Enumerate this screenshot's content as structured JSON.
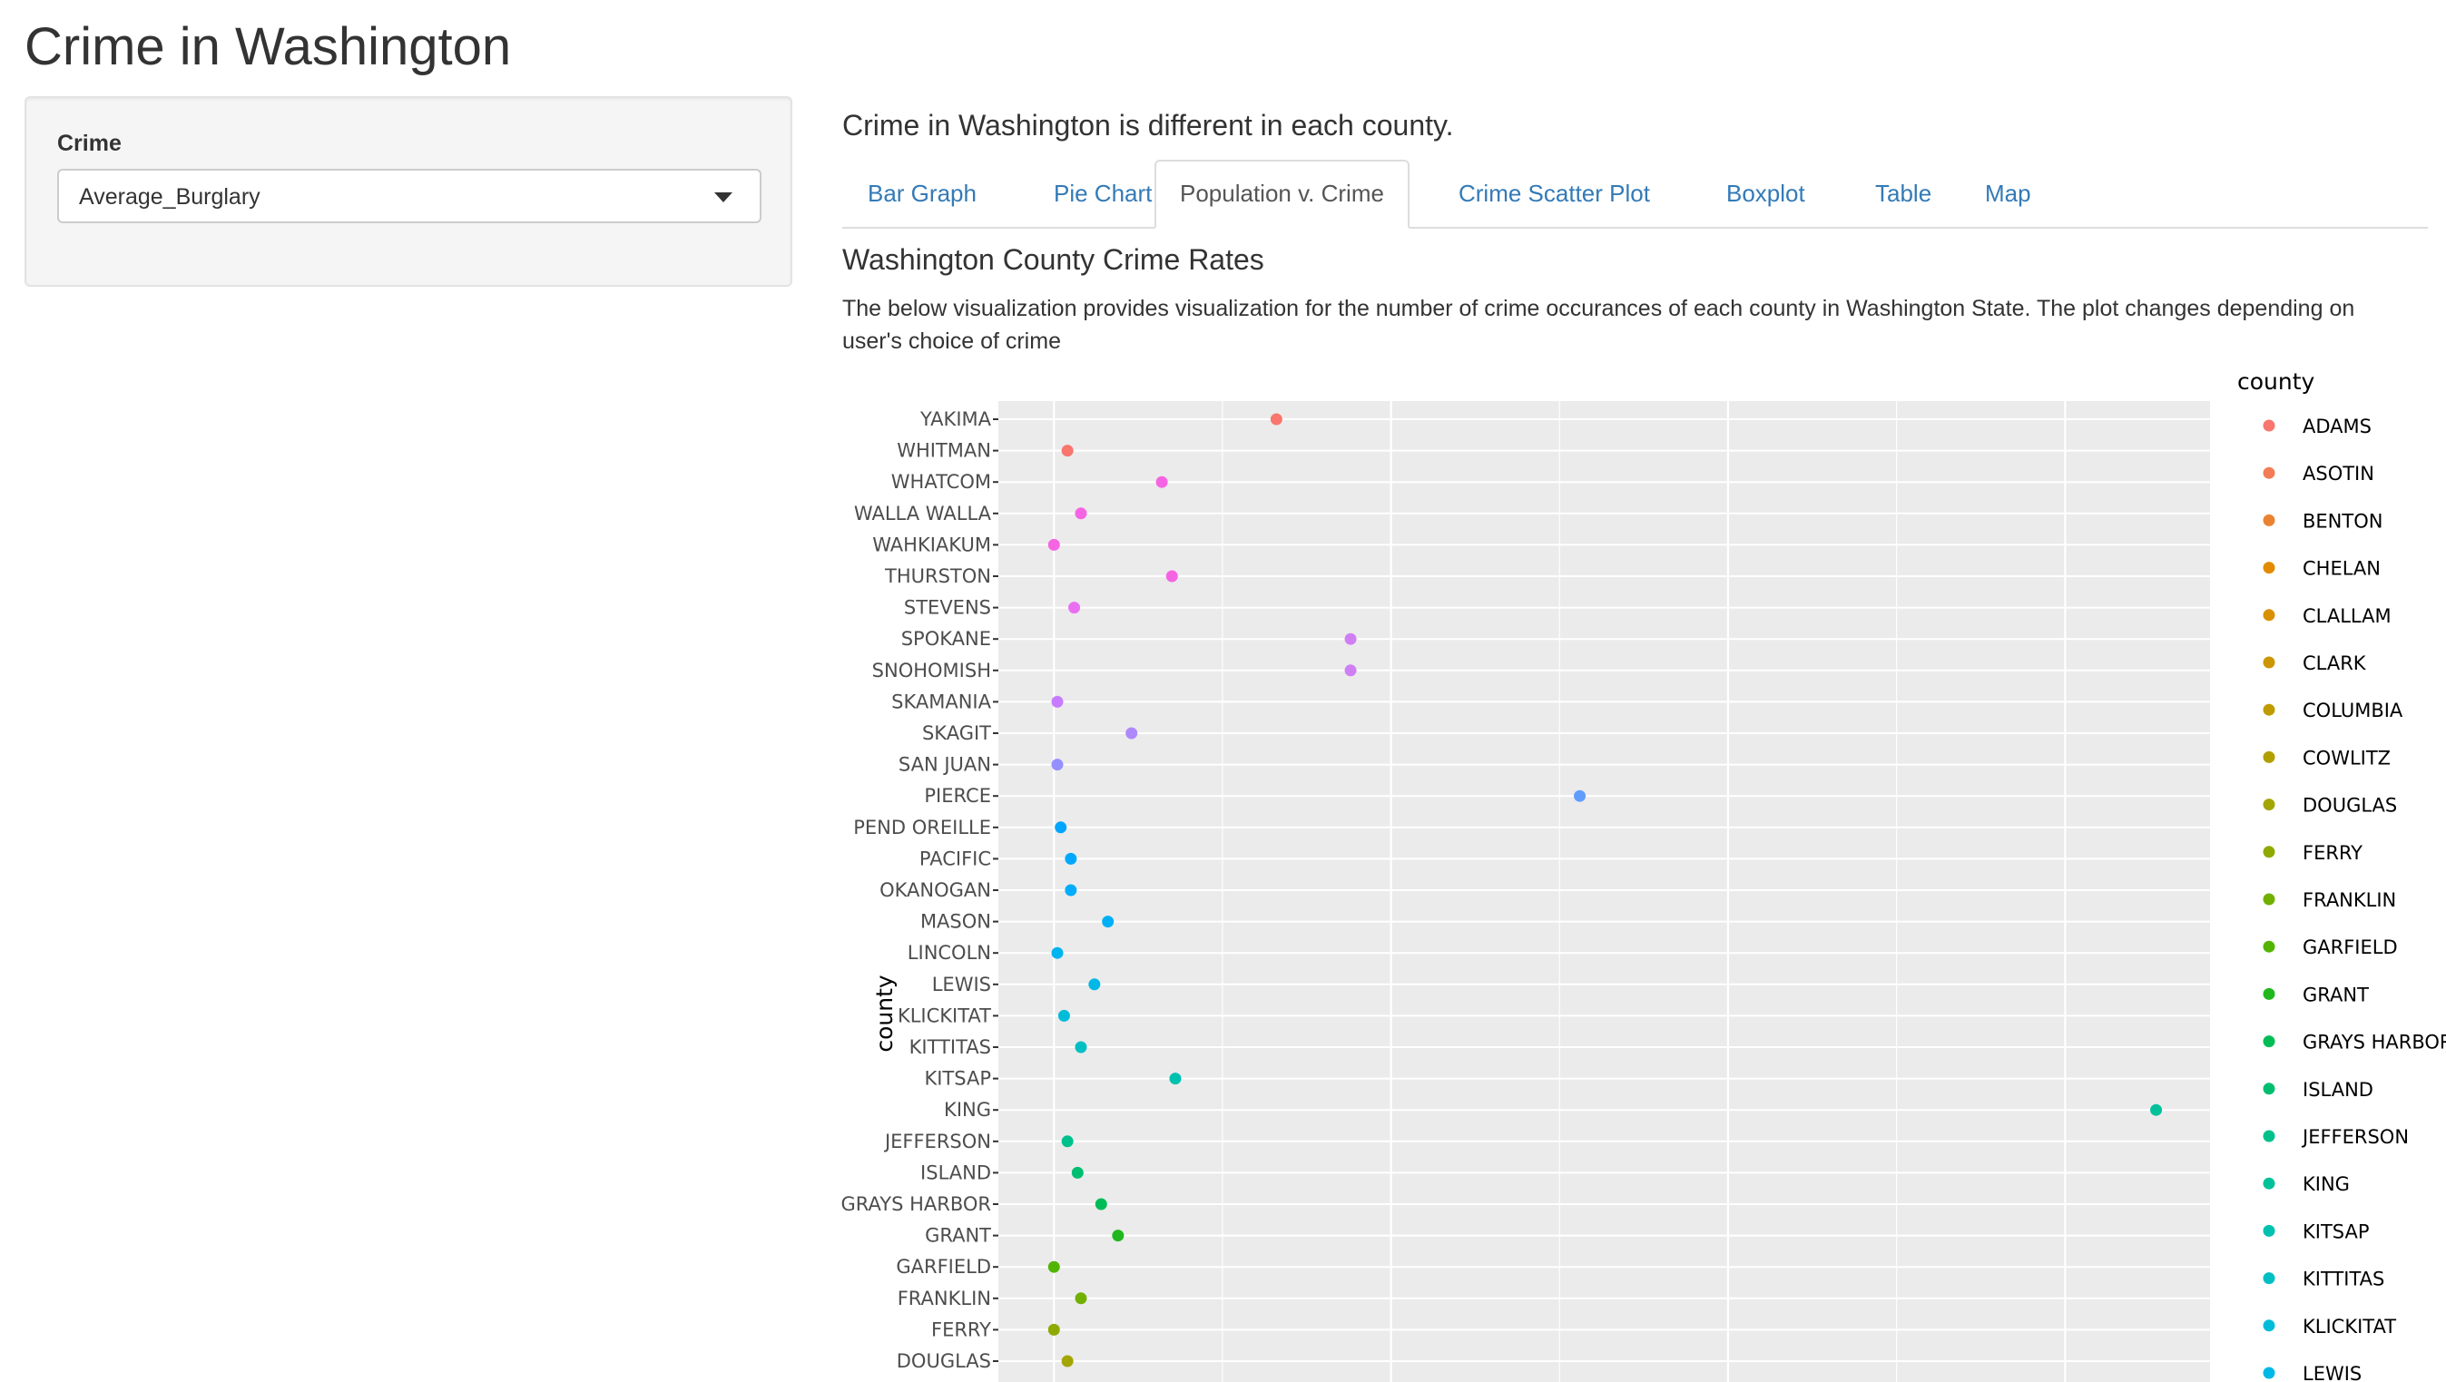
{
  "app": {
    "title": "Crime in Washington"
  },
  "sidebar": {
    "crime_label": "Crime",
    "crime_select": {
      "selected": "Average_Burglary"
    }
  },
  "main": {
    "subtitle": "Crime in Washington is different in each county.",
    "tabs": [
      {
        "label": "Bar Graph",
        "active": false
      },
      {
        "label": "Pie Chart",
        "active": false
      },
      {
        "label": "Population v. Crime",
        "active": true
      },
      {
        "label": "Crime Scatter Plot",
        "active": false
      },
      {
        "label": "Boxplot",
        "active": false
      },
      {
        "label": "Table",
        "active": false
      },
      {
        "label": "Map",
        "active": false
      }
    ],
    "section_heading": "Washington County Crime Rates",
    "description": "The below visualization provides visualization for the number of crime occurances of each county in Washington State. The plot changes depending on user's choice of crime"
  },
  "chart_data": {
    "type": "scatter",
    "ylabel": "county",
    "xlabel": "",
    "x_range": [
      -0.165,
      3.43
    ],
    "grid": true,
    "legend_placement": "right",
    "legend_title": "county",
    "points": [
      {
        "county": "YAKIMA",
        "value": 0.66,
        "color": "#f8766d"
      },
      {
        "county": "WHITMAN",
        "value": 0.04,
        "color": "#f8766d"
      },
      {
        "county": "WHATCOM",
        "value": 0.32,
        "color": "#f564e3"
      },
      {
        "county": "WALLA WALLA",
        "value": 0.08,
        "color": "#f564e3"
      },
      {
        "county": "WAHKIAKUM",
        "value": 0.0,
        "color": "#f564e3"
      },
      {
        "county": "THURSTON",
        "value": 0.35,
        "color": "#f564e3"
      },
      {
        "county": "STEVENS",
        "value": 0.06,
        "color": "#ea6ff0"
      },
      {
        "county": "SPOKANE",
        "value": 0.88,
        "color": "#d07ef4"
      },
      {
        "county": "SNOHOMISH",
        "value": 0.88,
        "color": "#d07ef4"
      },
      {
        "county": "SKAMANIA",
        "value": 0.01,
        "color": "#c77cff"
      },
      {
        "county": "SKAGIT",
        "value": 0.23,
        "color": "#ad89fb"
      },
      {
        "county": "SAN JUAN",
        "value": 0.01,
        "color": "#9590ff"
      },
      {
        "county": "PIERCE",
        "value": 1.56,
        "color": "#619cff"
      },
      {
        "county": "PEND OREILLE",
        "value": 0.02,
        "color": "#00a5ff"
      },
      {
        "county": "PACIFIC",
        "value": 0.05,
        "color": "#00a9ff"
      },
      {
        "county": "OKANOGAN",
        "value": 0.05,
        "color": "#00acfc"
      },
      {
        "county": "MASON",
        "value": 0.16,
        "color": "#00b0f6"
      },
      {
        "county": "LINCOLN",
        "value": 0.01,
        "color": "#00b4ef"
      },
      {
        "county": "LEWIS",
        "value": 0.12,
        "color": "#00b8e5"
      },
      {
        "county": "KLICKITAT",
        "value": 0.03,
        "color": "#00bcd8"
      },
      {
        "county": "KITTITAS",
        "value": 0.08,
        "color": "#00bfc4"
      },
      {
        "county": "KITSAP",
        "value": 0.36,
        "color": "#00c0af"
      },
      {
        "county": "KING",
        "value": 3.27,
        "color": "#00c19a"
      },
      {
        "county": "JEFFERSON",
        "value": 0.04,
        "color": "#00c08b"
      },
      {
        "county": "ISLAND",
        "value": 0.07,
        "color": "#00be70"
      },
      {
        "county": "GRAYS HARBOR",
        "value": 0.14,
        "color": "#00bc56"
      },
      {
        "county": "GRANT",
        "value": 0.19,
        "color": "#21b81f"
      },
      {
        "county": "GARFIELD",
        "value": 0.0,
        "color": "#53b400"
      },
      {
        "county": "FRANKLIN",
        "value": 0.08,
        "color": "#72b000"
      },
      {
        "county": "FERRY",
        "value": 0.0,
        "color": "#8fa900"
      },
      {
        "county": "DOUGLAS",
        "value": 0.04,
        "color": "#a3a500"
      }
    ],
    "legend": [
      {
        "label": "ADAMS",
        "color": "#f8766d"
      },
      {
        "label": "ASOTIN",
        "color": "#f27c56"
      },
      {
        "label": "BENTON",
        "color": "#ea8331"
      },
      {
        "label": "CHELAN",
        "color": "#e28a00"
      },
      {
        "label": "CLALLAM",
        "color": "#d89000"
      },
      {
        "label": "CLARK",
        "color": "#cc9600"
      },
      {
        "label": "COLUMBIA",
        "color": "#bf9b00"
      },
      {
        "label": "COWLITZ",
        "color": "#b19f00"
      },
      {
        "label": "DOUGLAS",
        "color": "#a3a500"
      },
      {
        "label": "FERRY",
        "color": "#8fa900"
      },
      {
        "label": "FRANKLIN",
        "color": "#72b000"
      },
      {
        "label": "GARFIELD",
        "color": "#53b400"
      },
      {
        "label": "GRANT",
        "color": "#21b81f"
      },
      {
        "label": "GRAYS HARBOR",
        "color": "#00bc56"
      },
      {
        "label": "ISLAND",
        "color": "#00be70"
      },
      {
        "label": "JEFFERSON",
        "color": "#00c08b"
      },
      {
        "label": "KING",
        "color": "#00c19a"
      },
      {
        "label": "KITSAP",
        "color": "#00c0af"
      },
      {
        "label": "KITTITAS",
        "color": "#00bfc4"
      },
      {
        "label": "KLICKITAT",
        "color": "#00bcd8"
      },
      {
        "label": "LEWIS",
        "color": "#00b8e5"
      }
    ]
  }
}
